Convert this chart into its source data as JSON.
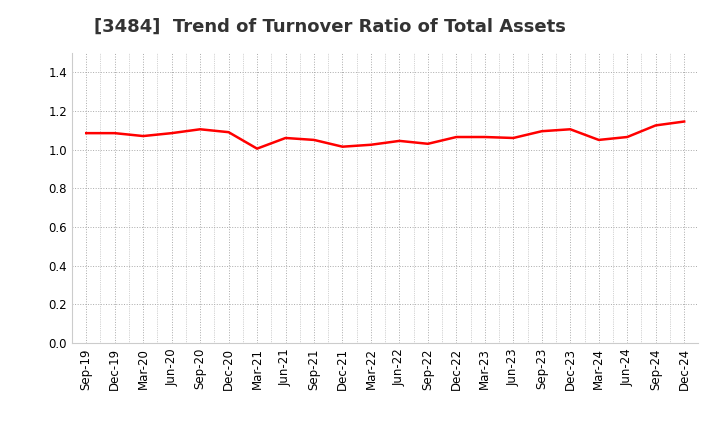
{
  "title": "[3484]  Trend of Turnover Ratio of Total Assets",
  "x_labels": [
    "Sep-19",
    "Dec-19",
    "Mar-20",
    "Jun-20",
    "Sep-20",
    "Dec-20",
    "Mar-21",
    "Jun-21",
    "Sep-21",
    "Dec-21",
    "Mar-22",
    "Jun-22",
    "Sep-22",
    "Dec-22",
    "Mar-23",
    "Jun-23",
    "Sep-23",
    "Dec-23",
    "Mar-24",
    "Jun-24",
    "Sep-24",
    "Dec-24"
  ],
  "values": [
    1.085,
    1.085,
    1.07,
    1.085,
    1.105,
    1.09,
    1.005,
    1.06,
    1.05,
    1.015,
    1.025,
    1.045,
    1.03,
    1.065,
    1.065,
    1.06,
    1.095,
    1.105,
    1.05,
    1.065,
    1.125,
    1.145
  ],
  "line_color": "#ff0000",
  "line_width": 1.8,
  "ylim": [
    0.0,
    1.5
  ],
  "yticks": [
    0.0,
    0.2,
    0.4,
    0.6,
    0.8,
    1.0,
    1.2,
    1.4
  ],
  "background_color": "#ffffff",
  "grid_color": "#aaaaaa",
  "title_fontsize": 13,
  "tick_fontsize": 8.5,
  "title_color": "#333333"
}
